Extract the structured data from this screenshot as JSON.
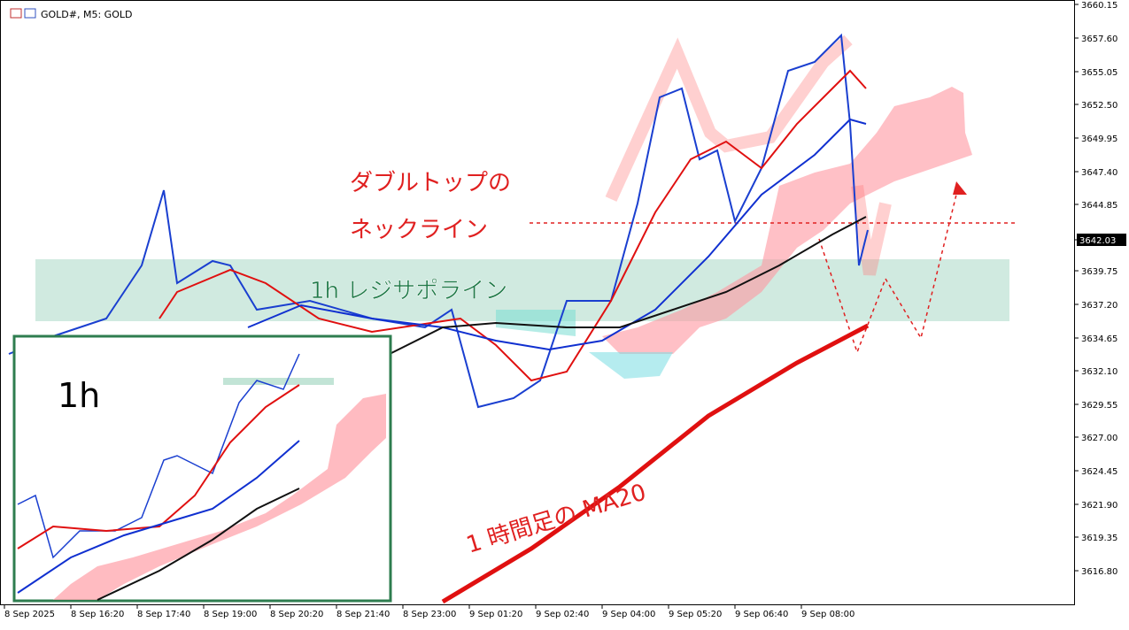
{
  "header": {
    "title": "GOLD#, M5: GOLD"
  },
  "price_axis": {
    "labels": [
      "3660.15",
      "3657.60",
      "3655.05",
      "3652.50",
      "3649.95",
      "3647.40",
      "3644.85",
      "3639.75",
      "3637.20",
      "3634.65",
      "3632.10",
      "3629.55",
      "3627.00",
      "3624.45",
      "3621.90",
      "3619.35",
      "3616.80"
    ],
    "current_price": "3642.03"
  },
  "time_axis": {
    "labels": [
      "8 Sep 2025",
      "8 Sep 16:20",
      "8 Sep 17:40",
      "8 Sep 19:00",
      "8 Sep 20:20",
      "8 Sep 21:40",
      "8 Sep 23:00",
      "9 Sep 01:20",
      "9 Sep 02:40",
      "9 Sep 04:00",
      "9 Sep 05:20",
      "9 Sep 06:40",
      "9 Sep 08:00"
    ]
  },
  "annotations": {
    "double_top_1": "ダブルトップの",
    "double_top_2": "ネックライン",
    "resistance": "1h レジサポライン",
    "ma20": "1 時間足の MA20"
  },
  "inset": {
    "label": "1h"
  }
}
